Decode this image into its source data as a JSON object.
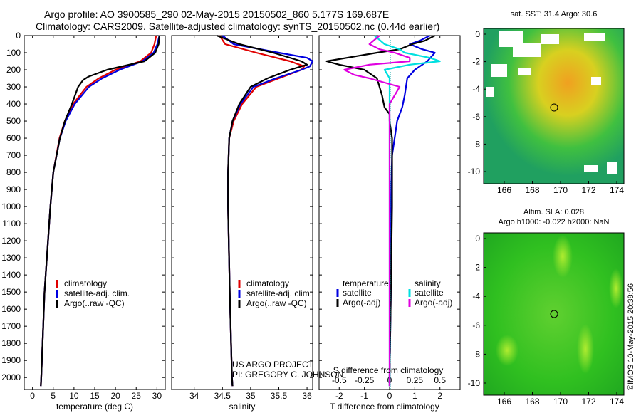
{
  "header": {
    "line1": "Argo profile: AO 3900585_290 02-May-2015 20150502_860 5.177S 169.687E",
    "line2": "Climatology: CARS2009. Satellite-adjusted climatology: synTS_20150502.nc (0.44d earlier)"
  },
  "maps": {
    "sst_title": "sat. SST: 31.4 Argo: 30.6",
    "sla_title_1": "Altim. SLA: 0.028",
    "sla_title_2": "Argo h1000: -0.022 h2000: NaN",
    "x_ticks": [
      "166",
      "168",
      "170",
      "172",
      "174"
    ],
    "y_ticks": [
      "0",
      "-2",
      "-4",
      "-6",
      "-8",
      "-10"
    ],
    "timestamp": "©IMOS 10-May-2015 20:38:56"
  },
  "project": {
    "line1": "US ARGO PROJECT",
    "line2": "PI: GREGORY C. JOHNSON"
  },
  "colors": {
    "climatology": "#e00000",
    "satellite": "#0000e0",
    "argo": "#000000",
    "satellite_salinity": "#00e0e0",
    "argo_salinity": "#e000e0"
  },
  "chart_data": [
    {
      "type": "line",
      "title": "",
      "xlabel": "temperature (deg C)",
      "ylabel": "",
      "xlim": [
        -2,
        32
      ],
      "ylim": [
        2070,
        0
      ],
      "x_ticks": [
        0,
        5,
        10,
        15,
        20,
        25,
        30
      ],
      "y_ticks": [
        0,
        100,
        200,
        300,
        400,
        500,
        600,
        700,
        800,
        900,
        1000,
        1100,
        1200,
        1300,
        1400,
        1500,
        1600,
        1700,
        1800,
        1900,
        2000
      ],
      "legend": [
        "climatology",
        "satellite-adj. clim.",
        "Argo(..raw -QC)"
      ],
      "series": [
        {
          "name": "climatology",
          "depth": [
            0,
            50,
            100,
            150,
            200,
            250,
            300,
            400,
            500,
            600,
            800,
            1000,
            1500,
            2000,
            2050
          ],
          "values": [
            29.8,
            29.4,
            28.6,
            26.0,
            20.0,
            16.0,
            13.0,
            9.8,
            7.8,
            6.5,
            5.0,
            4.3,
            2.9,
            2.1,
            2.0
          ]
        },
        {
          "name": "satellite-adj. clim.",
          "depth": [
            0,
            50,
            100,
            150,
            200,
            250,
            300,
            400,
            500,
            600,
            800,
            1000,
            1500,
            2000,
            2050
          ],
          "values": [
            30.6,
            30.1,
            29.2,
            26.5,
            21.0,
            16.8,
            13.6,
            10.2,
            8.0,
            6.6,
            5.0,
            4.3,
            2.9,
            2.1,
            2.0
          ]
        },
        {
          "name": "Argo(..raw -QC)",
          "depth": [
            0,
            50,
            100,
            150,
            200,
            240,
            260,
            300,
            400,
            500,
            600,
            800,
            1000,
            1500,
            2000,
            2050
          ],
          "values": [
            30.6,
            30.4,
            29.6,
            27.0,
            18.0,
            13.5,
            12.2,
            11.0,
            9.5,
            7.8,
            6.6,
            5.0,
            4.3,
            2.9,
            2.1,
            2.0
          ]
        }
      ]
    },
    {
      "type": "line",
      "title": "",
      "xlabel": "salinity",
      "ylabel": "",
      "xlim": [
        33.6,
        36.1
      ],
      "ylim": [
        2070,
        0
      ],
      "x_ticks": [
        34,
        34.5,
        35,
        35.5,
        36
      ],
      "legend": [
        "climatology",
        "satellite-adj. clim.",
        "Argo(..raw -QC)"
      ],
      "series": [
        {
          "name": "climatology",
          "depth": [
            0,
            50,
            100,
            150,
            180,
            200,
            250,
            300,
            400,
            500,
            600,
            800,
            1000,
            1500,
            2000,
            2050
          ],
          "values": [
            34.45,
            34.55,
            35.1,
            35.7,
            35.95,
            35.9,
            35.5,
            35.1,
            34.85,
            34.7,
            34.62,
            34.6,
            34.6,
            34.63,
            34.67,
            34.68
          ]
        },
        {
          "name": "satellite-adj. clim.",
          "depth": [
            0,
            50,
            100,
            130,
            150,
            180,
            200,
            250,
            300,
            400,
            500,
            600,
            800,
            1000,
            1500,
            2000,
            2050
          ],
          "values": [
            34.5,
            34.7,
            35.5,
            36.0,
            36.1,
            36.05,
            35.9,
            35.45,
            35.05,
            34.82,
            34.68,
            34.62,
            34.6,
            34.6,
            34.63,
            34.67,
            34.68
          ]
        },
        {
          "name": "Argo(..raw -QC)",
          "depth": [
            0,
            50,
            100,
            150,
            170,
            200,
            250,
            300,
            400,
            500,
            600,
            800,
            1000,
            1500,
            2000,
            2050
          ],
          "values": [
            34.4,
            34.8,
            35.4,
            35.9,
            36.0,
            35.7,
            35.3,
            35.0,
            34.8,
            34.68,
            34.62,
            34.6,
            34.6,
            34.63,
            34.67,
            34.68
          ]
        }
      ]
    },
    {
      "type": "line",
      "title": "",
      "xlabel": "T difference from climatology",
      "xlabel2": "S difference from climatology",
      "ylabel": "",
      "xlim": [
        -2.8,
        2.8
      ],
      "xlim_s": [
        -0.7,
        0.7
      ],
      "ylim": [
        2070,
        0
      ],
      "x_ticks": [
        -2,
        -1,
        0,
        1,
        2
      ],
      "x_ticks_s": [
        -0.5,
        -0.25,
        0,
        0.25,
        0.5
      ],
      "legend": [
        "temperature",
        "satellite",
        "Argo(-adj)",
        "salinity",
        "satellite",
        "Argo(-adj)"
      ],
      "series": [
        {
          "name": "temperature satellite",
          "depth": [
            0,
            30,
            50,
            80,
            100,
            150,
            200,
            250,
            350,
            420,
            460,
            500,
            600,
            700,
            1000,
            1500,
            2000,
            2050
          ],
          "values": [
            1.6,
            1.2,
            0.8,
            1.3,
            1.8,
            1.5,
            1.0,
            0.7,
            0.6,
            0.5,
            0.4,
            0.3,
            0.2,
            0.1,
            0.05,
            0.05,
            0.0,
            0.0
          ]
        },
        {
          "name": "temperature Argo(-adj)",
          "depth": [
            0,
            30,
            50,
            80,
            100,
            150,
            170,
            200,
            250,
            350,
            420,
            460,
            500,
            600,
            700,
            1000,
            1500,
            2000,
            2050
          ],
          "values": [
            1.8,
            1.4,
            0.9,
            0.4,
            -0.5,
            -2.5,
            -2.0,
            -1.0,
            -0.5,
            -0.3,
            -0.2,
            0.0,
            0.0,
            0.1,
            0.1,
            0.1,
            0.05,
            0.0,
            0.0
          ]
        },
        {
          "name": "salinity satellite",
          "depth": [
            0,
            50,
            80,
            100,
            130,
            150,
            170,
            200,
            230,
            250,
            300,
            400,
            600,
            1000,
            2000,
            2050
          ],
          "values": [
            -0.15,
            -0.05,
            0.1,
            0.15,
            0.4,
            0.5,
            0.2,
            -0.05,
            -0.02,
            0.0,
            0.0,
            0.0,
            0.0,
            0.0,
            0.0,
            0.0
          ]
        },
        {
          "name": "salinity Argo(-adj)",
          "depth": [
            0,
            50,
            80,
            100,
            130,
            150,
            170,
            200,
            230,
            250,
            300,
            400,
            600,
            1000,
            2000,
            2050
          ],
          "values": [
            -0.1,
            -0.2,
            -0.1,
            0.05,
            0.2,
            0.2,
            -0.2,
            -0.45,
            -0.35,
            -0.2,
            0.1,
            0.0,
            0.0,
            0.0,
            0.0,
            0.0
          ]
        }
      ]
    }
  ]
}
